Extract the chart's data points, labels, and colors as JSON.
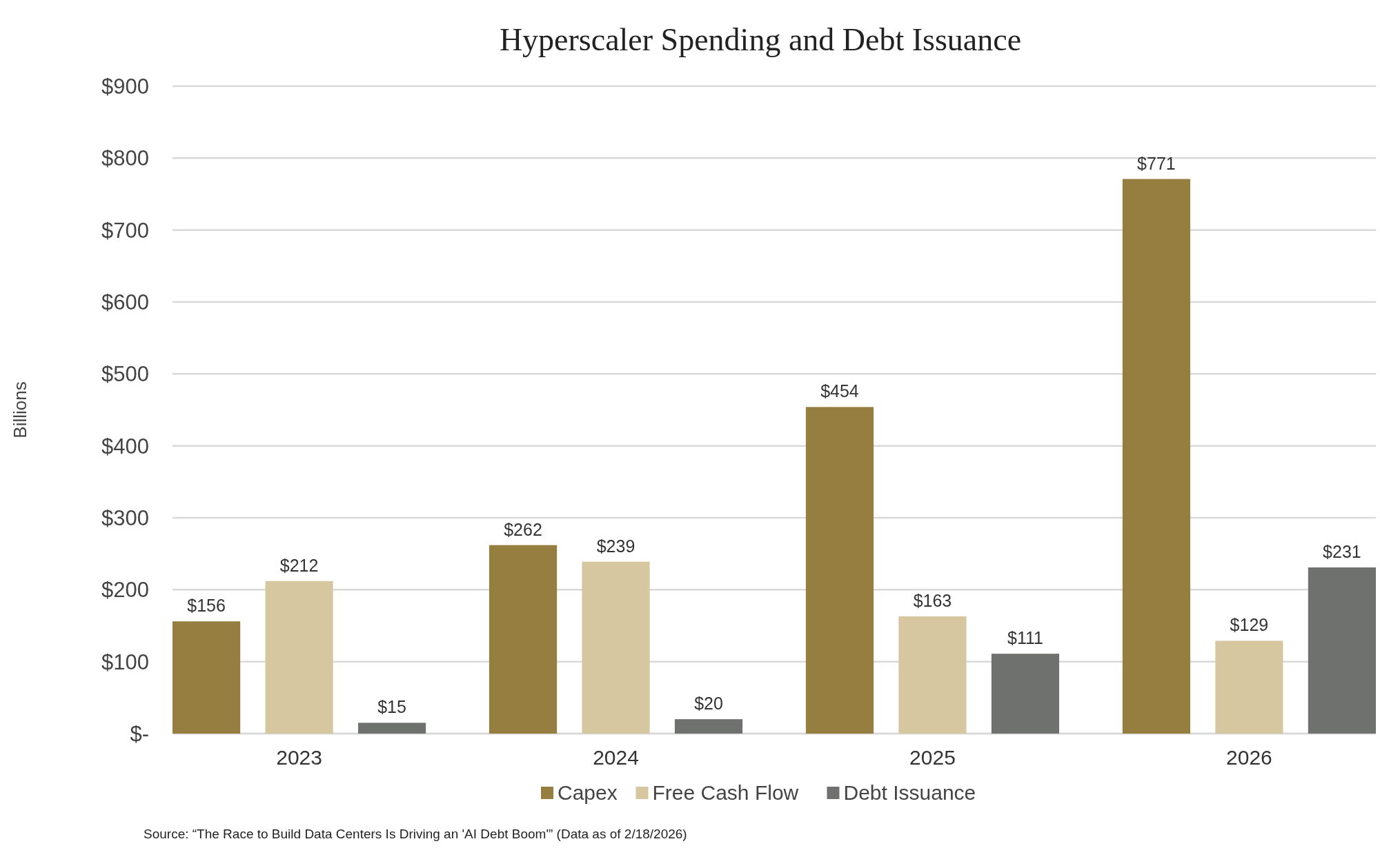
{
  "chart_data": {
    "type": "bar",
    "title": "Hyperscaler Spending and Debt Issuance",
    "ylabel": "Billions",
    "categories": [
      "2023",
      "2024",
      "2025",
      "2026"
    ],
    "series": [
      {
        "name": "Capex",
        "color": "#967d40",
        "values": [
          156,
          262,
          454,
          771
        ],
        "value_labels": [
          "$156",
          "$262",
          "$454",
          "$771"
        ]
      },
      {
        "name": "Free Cash Flow",
        "color": "#d6c7a1",
        "values": [
          212,
          239,
          163,
          129
        ],
        "value_labels": [
          "$212",
          "$239",
          "$163",
          "$129"
        ]
      },
      {
        "name": "Debt Issuance",
        "color": "#6f716f",
        "values": [
          15,
          20,
          111,
          231
        ],
        "value_labels": [
          "$15",
          "$20",
          "$111",
          "$231"
        ]
      }
    ],
    "ylim": [
      0,
      900
    ],
    "yticks": [
      {
        "value": 0,
        "label": "$-"
      },
      {
        "value": 100,
        "label": "$100"
      },
      {
        "value": 200,
        "label": "$200"
      },
      {
        "value": 300,
        "label": "$300"
      },
      {
        "value": 400,
        "label": "$400"
      },
      {
        "value": 500,
        "label": "$500"
      },
      {
        "value": 600,
        "label": "$600"
      },
      {
        "value": 700,
        "label": "$700"
      },
      {
        "value": 800,
        "label": "$800"
      },
      {
        "value": 900,
        "label": "$900"
      }
    ],
    "grid": "y",
    "legend": "bottom",
    "annotations": [
      "Source: “The Race to Build Data Centers Is Driving an 'AI Debt Boom'” (Data as of 2/18/2026)"
    ]
  }
}
